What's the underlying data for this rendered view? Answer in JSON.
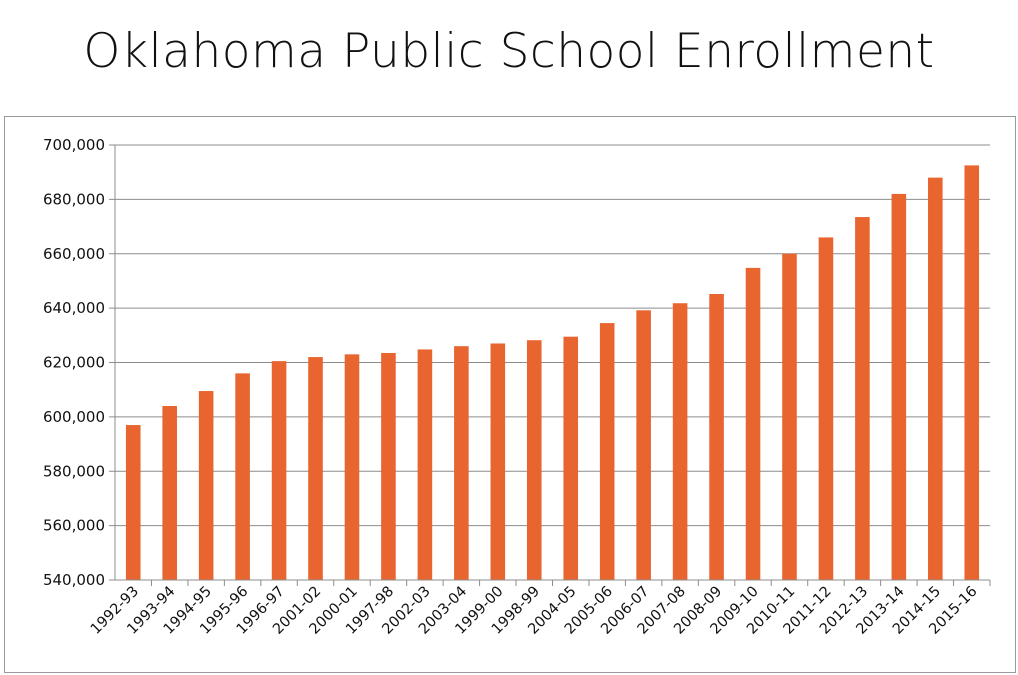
{
  "chart_data": {
    "type": "bar",
    "title": "Oklahoma Public School Enrollment",
    "xlabel": "",
    "ylabel": "",
    "ylim": [
      540000,
      700000
    ],
    "yticks": [
      540000,
      560000,
      580000,
      600000,
      620000,
      640000,
      660000,
      680000,
      700000
    ],
    "ytick_labels": [
      "540,000",
      "560,000",
      "580,000",
      "600,000",
      "620,000",
      "640,000",
      "660,000",
      "680,000",
      "700,000"
    ],
    "grid": true,
    "legend": "none",
    "bar_color": "#E8652F",
    "categories": [
      "1992-93",
      "1993-94",
      "1994-95",
      "1995-96",
      "1996-97",
      "2001-02",
      "2000-01",
      "1997-98",
      "2002-03",
      "2003-04",
      "1999-00",
      "1998-99",
      "2004-05",
      "2005-06",
      "2006-07",
      "2007-08",
      "2008-09",
      "2009-10",
      "2010-11",
      "2011-12",
      "2012-13",
      "2013-14",
      "2014-15",
      "2015-16"
    ],
    "values": [
      597000,
      604000,
      609500,
      616000,
      620500,
      622000,
      623000,
      623500,
      624800,
      626000,
      627000,
      628200,
      629500,
      634500,
      639200,
      641800,
      645200,
      654800,
      660000,
      666000,
      673500,
      682000,
      688000,
      692500
    ]
  }
}
